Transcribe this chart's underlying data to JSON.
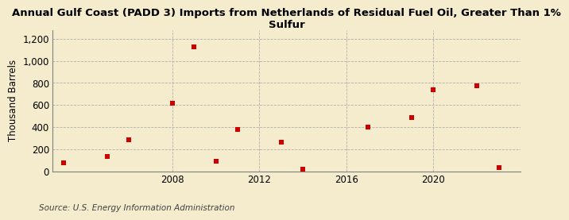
{
  "title": "Annual Gulf Coast (PADD 3) Imports from Netherlands of Residual Fuel Oil, Greater Than 1%\nSulfur",
  "ylabel": "Thousand Barrels",
  "source": "Source: U.S. Energy Information Administration",
  "background_color": "#f5ecce",
  "plot_background_color": "#f5ecce",
  "marker_color": "#cc0000",
  "marker_size": 5,
  "xlim": [
    2002.5,
    2024
  ],
  "ylim": [
    0,
    1280
  ],
  "yticks": [
    0,
    200,
    400,
    600,
    800,
    1000,
    1200
  ],
  "ytick_labels": [
    "0",
    "200",
    "400",
    "600",
    "800",
    "1,000",
    "1,200"
  ],
  "xticks": [
    2008,
    2012,
    2016,
    2020
  ],
  "data_x": [
    2003,
    2005,
    2006,
    2008,
    2009,
    2010,
    2011,
    2013,
    2014,
    2017,
    2019,
    2020,
    2022,
    2023
  ],
  "data_y": [
    78,
    135,
    285,
    615,
    1130,
    90,
    375,
    260,
    20,
    400,
    490,
    735,
    775,
    35
  ]
}
